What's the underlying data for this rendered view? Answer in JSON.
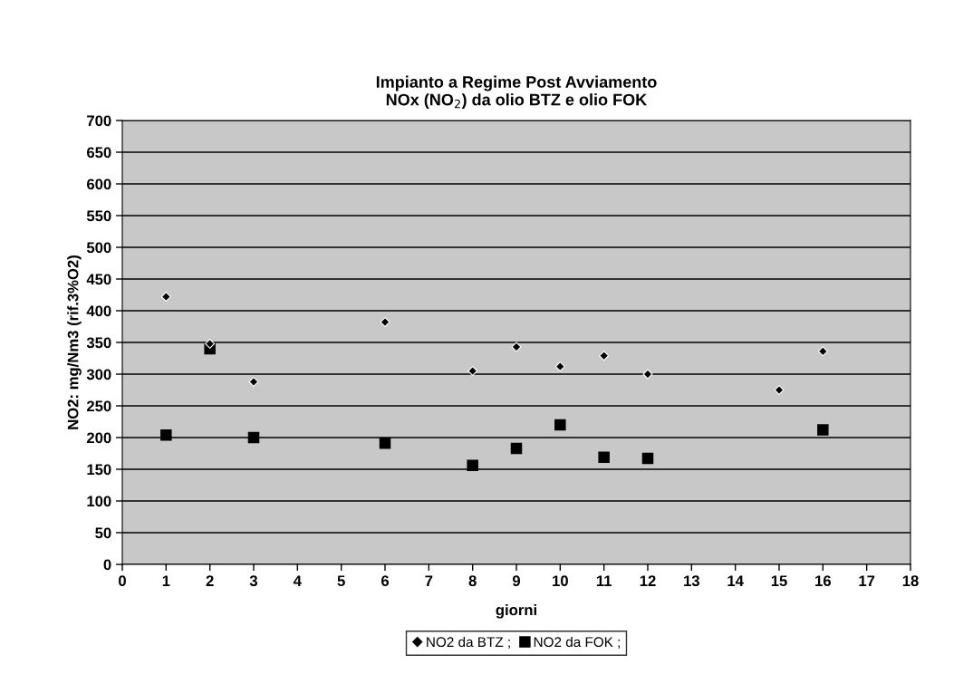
{
  "chart_data": {
    "type": "scatter",
    "title": "Impianto a Regime Post Avviamento\nNOx (NO$_{2}$) da olio BTZ e olio FOK",
    "xlabel": "giorni",
    "ylabel": "NO2: mg/Nm3 (rif.3%O2)",
    "series": [
      {
        "name": "NO2 da BTZ ;",
        "color": "#000000",
        "marker": "diamond",
        "x": [
          1,
          2,
          3,
          6,
          8,
          9,
          10,
          11,
          12,
          15,
          16
        ],
        "values": [
          422,
          348,
          288,
          382,
          305,
          343,
          312,
          329,
          300,
          275,
          336
        ]
      },
      {
        "name": "NO2 da FOK ;",
        "color": "#000000",
        "marker": "square",
        "x": [
          1,
          2,
          3,
          6,
          8,
          9,
          10,
          11,
          12,
          16
        ],
        "values": [
          204,
          340,
          200,
          191,
          156,
          183,
          220,
          169,
          167,
          212
        ]
      }
    ],
    "xlim": [
      0,
      18
    ],
    "xticks": [
      0,
      1,
      2,
      3,
      4,
      5,
      6,
      7,
      8,
      9,
      10,
      11,
      12,
      13,
      14,
      15,
      16,
      17,
      18
    ],
    "ylim": [
      0,
      700
    ],
    "yticks": [
      0,
      50,
      100,
      150,
      200,
      250,
      300,
      350,
      400,
      450,
      500,
      550,
      600,
      650,
      700
    ],
    "grid": "y",
    "legend": "bottom"
  }
}
